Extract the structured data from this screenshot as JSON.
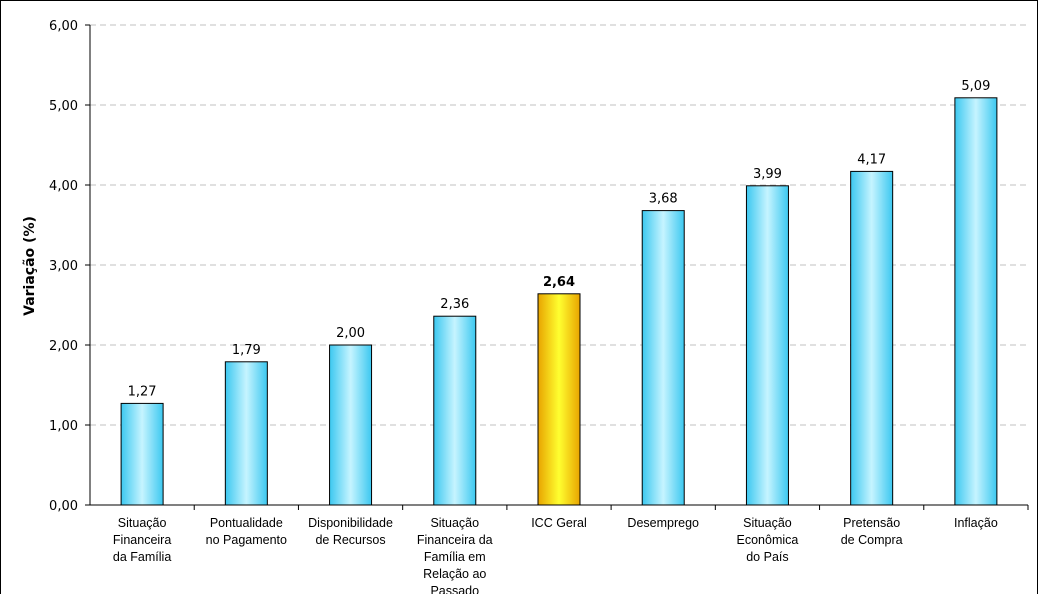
{
  "chart_data": {
    "type": "bar",
    "title": "",
    "xlabel": "",
    "ylabel": "Variação (%)",
    "ylim": [
      0,
      6
    ],
    "yticks": [
      "0,00",
      "1,00",
      "2,00",
      "3,00",
      "4,00",
      "5,00",
      "6,00"
    ],
    "grid": true,
    "categories": [
      [
        "Situação",
        "Financeira",
        "da Família"
      ],
      [
        "Pontualidade",
        "no Pagamento"
      ],
      [
        "Disponibilidade",
        "de Recursos"
      ],
      [
        "Situação",
        "Financeira da",
        "Família em",
        "Relação ao",
        "Passado"
      ],
      [
        "ICC Geral"
      ],
      [
        "Desemprego"
      ],
      [
        "Situação",
        "Econômica",
        "do País"
      ],
      [
        "Pretensão",
        "de Compra"
      ],
      [
        "Inflação"
      ]
    ],
    "values": [
      1.27,
      1.79,
      2.0,
      2.36,
      2.64,
      3.68,
      3.99,
      4.17,
      5.09
    ],
    "value_labels": [
      "1,27",
      "1,79",
      "2,00",
      "2,36",
      "2,64",
      "3,68",
      "3,99",
      "4,17",
      "5,09"
    ],
    "highlight_index": 4,
    "colors": {
      "bar_gradient": [
        "#3cc8f0",
        "#c6f4ff",
        "#3cc8f0"
      ],
      "highlight_gradient": [
        "#e8a400",
        "#ffff30",
        "#e8a400"
      ],
      "bar_stroke": "#000000",
      "grid": "#c0c0c0",
      "axis": "#000000"
    }
  }
}
